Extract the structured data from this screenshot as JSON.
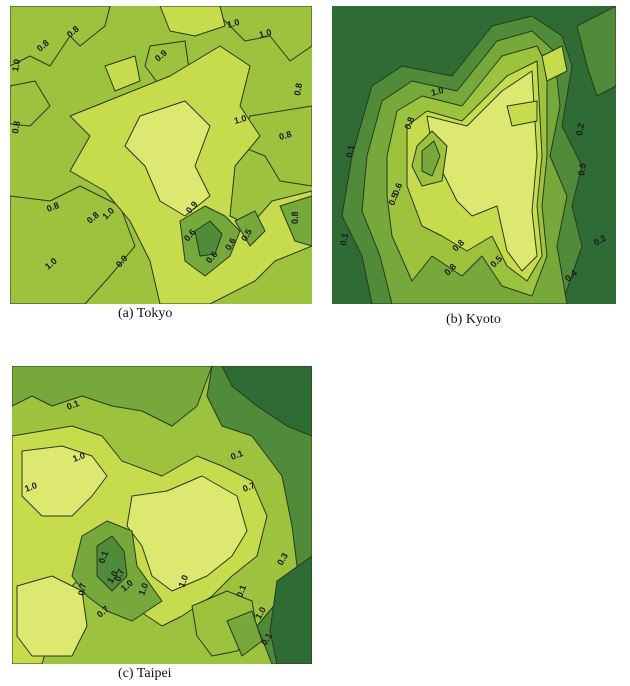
{
  "figure": {
    "captions": {
      "tokyo": "(a) Tokyo",
      "kyoto": "(b) Kyoto",
      "taipei": "(c) Taipei"
    },
    "colors": {
      "level_0_1": "#2e6b35",
      "level_0_3": "#4f8b38",
      "level_0_5": "#76a83c",
      "level_0_7": "#9cc23e",
      "level_0_9": "#c6dc4c",
      "level_1_0": "#dde871",
      "contour_line": "#2a3a1a"
    }
  },
  "chart_data": [
    {
      "type": "contour",
      "title": "(a) Tokyo",
      "levels": [
        0.1,
        0.3,
        0.5,
        0.7,
        0.9,
        1.0
      ],
      "labels": [
        "1.0",
        "1.0",
        "0.8",
        "0.8",
        "0.9",
        "1.0",
        "0.8",
        "1.0",
        "0.8",
        "0.8",
        "0.8",
        "0.8",
        "1.0",
        "0.9",
        "0.9",
        "0.6",
        "0.6",
        "0.6",
        "0.5",
        "0.8",
        "1.0"
      ]
    },
    {
      "type": "contour",
      "title": "(b) Kyoto",
      "levels": [
        0.1,
        0.3,
        0.5,
        0.7,
        0.9,
        1.0
      ],
      "labels": [
        "1.0",
        "0.8",
        "0.1",
        "0.6",
        "0.5",
        "0.1",
        "0.8",
        "0.8",
        "0.5",
        "0.2",
        "0.5",
        "0.2",
        "0.4"
      ]
    },
    {
      "type": "contour",
      "title": "(c) Taipei",
      "levels": [
        0.1,
        0.3,
        0.5,
        0.7,
        0.9,
        1.0
      ],
      "labels": [
        "0.1",
        "1.0",
        "1.0",
        "0.1",
        "0.7",
        "0.1",
        "1.0",
        "1.0",
        "0.7",
        "0.7",
        "0.7",
        "1.0",
        "1.0",
        "0.1",
        "0.3",
        "1.0",
        "0.1"
      ]
    }
  ]
}
